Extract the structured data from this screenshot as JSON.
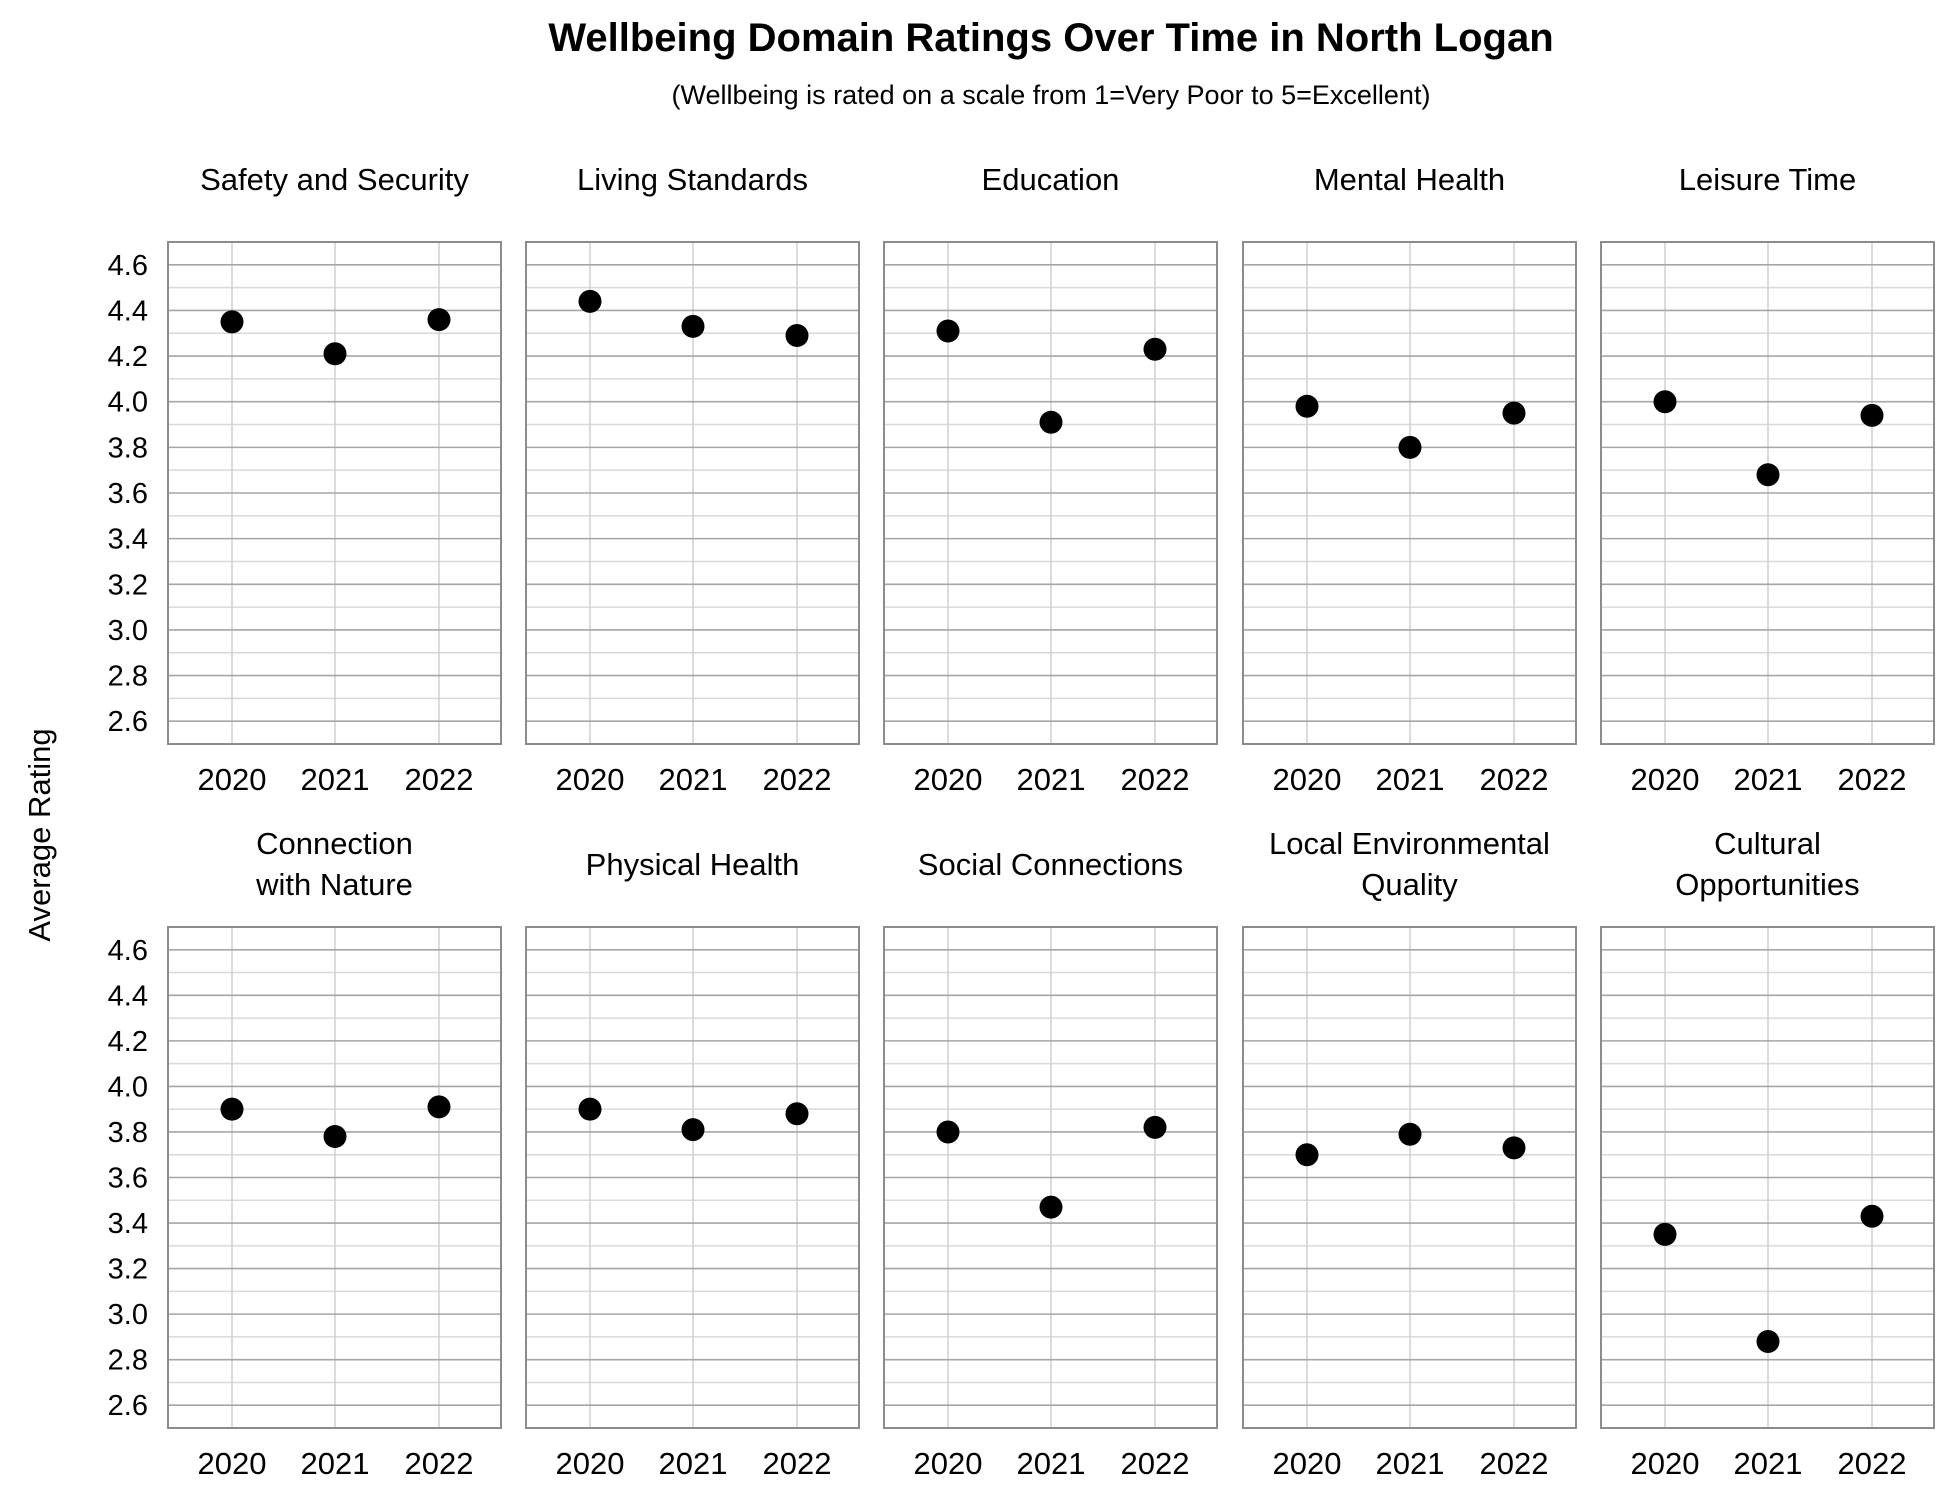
{
  "chart_data": {
    "type": "scatter",
    "title": "Wellbeing Domain Ratings Over Time in North Logan",
    "subtitle": "(Wellbeing is rated on a scale from 1=Very Poor to 5=Excellent)",
    "ylabel": "Average Rating",
    "xlabel": "",
    "x": [
      "2020",
      "2021",
      "2022"
    ],
    "y_ticks": [
      "2.6",
      "2.8",
      "3.0",
      "3.2",
      "3.4",
      "3.6",
      "3.8",
      "4.0",
      "4.2",
      "4.4",
      "4.6"
    ],
    "ylim": [
      2.5,
      4.7
    ],
    "grid": true,
    "marker_color": "#000000",
    "facets": [
      {
        "label": [
          "Safety and Security"
        ],
        "values": [
          4.35,
          4.21,
          4.36
        ]
      },
      {
        "label": [
          "Living Standards"
        ],
        "values": [
          4.44,
          4.33,
          4.29
        ]
      },
      {
        "label": [
          "Education"
        ],
        "values": [
          4.31,
          3.91,
          4.23
        ]
      },
      {
        "label": [
          "Mental Health"
        ],
        "values": [
          3.98,
          3.8,
          3.95
        ]
      },
      {
        "label": [
          "Leisure Time"
        ],
        "values": [
          4.0,
          3.68,
          3.94
        ]
      },
      {
        "label": [
          "Connection",
          "with Nature"
        ],
        "values": [
          3.9,
          3.78,
          3.91
        ]
      },
      {
        "label": [
          "Physical Health"
        ],
        "values": [
          3.9,
          3.81,
          3.88
        ]
      },
      {
        "label": [
          "Social Connections"
        ],
        "values": [
          3.8,
          3.47,
          3.82
        ]
      },
      {
        "label": [
          "Local Environmental",
          "Quality"
        ],
        "values": [
          3.7,
          3.79,
          3.73
        ]
      },
      {
        "label": [
          "Cultural",
          "Opportunities"
        ],
        "values": [
          3.35,
          2.88,
          3.43
        ]
      }
    ]
  }
}
